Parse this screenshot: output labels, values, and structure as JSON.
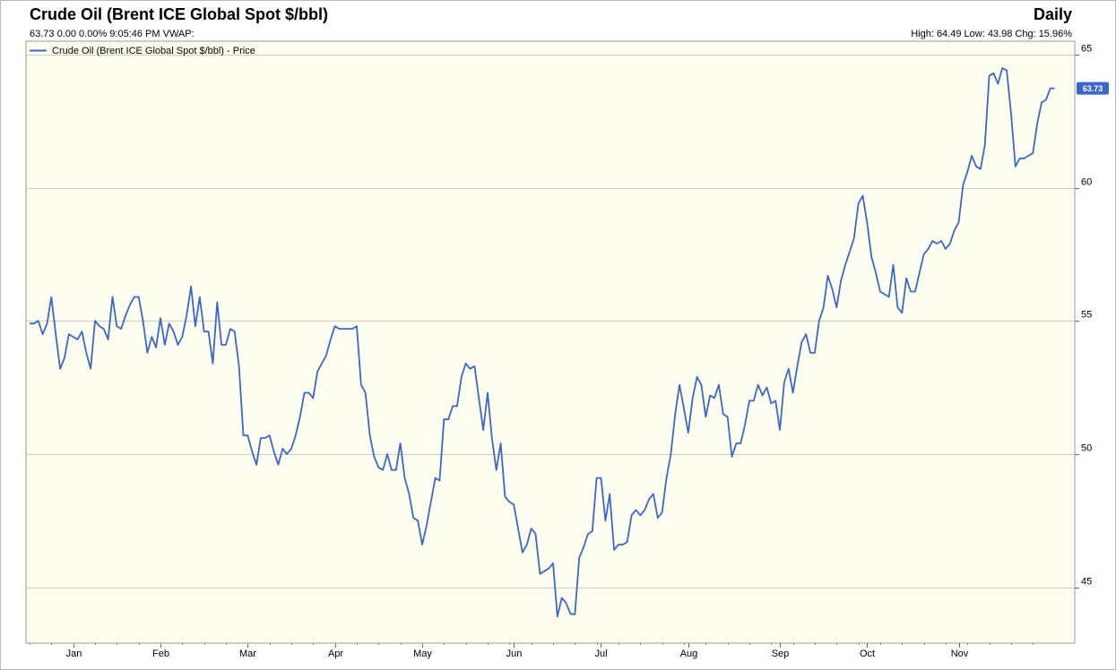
{
  "header": {
    "title": "Crude Oil (Brent ICE Global Spot $/bbl)",
    "frequency": "Daily",
    "quote_line": "63.73 0.00 0.00% 9:05:46 PM VWAP:",
    "stats_line": "High: 64.49 Low: 43.98 Chg: 15.96%"
  },
  "colors": {
    "plot_background": "#fefef0",
    "line": "#3a67c8",
    "grid": "#cfcfc0",
    "last_value_box": "#3a67c8"
  },
  "chart_data": {
    "type": "line",
    "title": "Crude Oil (Brent ICE Global Spot $/bbl)",
    "xlabel": "",
    "ylabel": "",
    "ylim": [
      42.9,
      65.5
    ],
    "y_ticks": [
      45,
      50,
      55,
      60,
      65
    ],
    "y_axis_side": "right",
    "grid": "horizontal",
    "legend_position": "top-left",
    "x_ticks": [
      {
        "label": "Jan",
        "index": 10
      },
      {
        "label": "Feb",
        "index": 30
      },
      {
        "label": "Mar",
        "index": 50
      },
      {
        "label": "Apr",
        "index": 70
      },
      {
        "label": "May",
        "index": 90
      },
      {
        "label": "Jun",
        "index": 111
      },
      {
        "label": "Jul",
        "index": 131
      },
      {
        "label": "Aug",
        "index": 151
      },
      {
        "label": "Sep",
        "index": 172
      },
      {
        "label": "Oct",
        "index": 192
      },
      {
        "label": "Nov",
        "index": 213
      }
    ],
    "x_range": [
      0,
      232
    ],
    "last_value": "63.73",
    "series": [
      {
        "name": "Crude Oil (Brent ICE Global Spot $/bbl) - Price",
        "values": [
          54.9,
          54.9,
          55.0,
          54.5,
          54.9,
          55.9,
          54.5,
          53.2,
          53.6,
          54.5,
          54.4,
          54.3,
          54.6,
          53.8,
          53.2,
          55.0,
          54.8,
          54.7,
          54.3,
          55.9,
          54.8,
          54.7,
          55.2,
          55.6,
          55.9,
          55.9,
          55.0,
          53.8,
          54.4,
          54.0,
          55.1,
          54.1,
          54.9,
          54.6,
          54.1,
          54.4,
          55.2,
          56.3,
          54.8,
          55.9,
          54.6,
          54.6,
          53.4,
          55.7,
          54.1,
          54.1,
          54.7,
          54.6,
          53.3,
          50.7,
          50.7,
          50.1,
          49.6,
          50.6,
          50.6,
          50.7,
          50.1,
          49.6,
          50.2,
          50.0,
          50.2,
          50.7,
          51.4,
          52.3,
          52.3,
          52.1,
          53.1,
          53.4,
          53.7,
          54.3,
          54.8,
          54.7,
          54.7,
          54.7,
          54.7,
          54.8,
          52.6,
          52.3,
          50.7,
          49.9,
          49.5,
          49.4,
          50.0,
          49.4,
          49.4,
          50.4,
          49.1,
          48.5,
          47.6,
          47.5,
          46.6,
          47.3,
          48.2,
          49.1,
          49.0,
          51.3,
          51.3,
          51.8,
          51.8,
          52.9,
          53.4,
          53.2,
          53.3,
          52.1,
          50.9,
          52.3,
          50.6,
          49.4,
          50.4,
          48.4,
          48.2,
          48.1,
          47.2,
          46.3,
          46.6,
          47.2,
          47.0,
          45.5,
          45.6,
          45.7,
          45.9,
          43.9,
          44.6,
          44.4,
          44.0,
          43.98,
          46.1,
          46.5,
          47.0,
          47.1,
          49.1,
          49.1,
          47.5,
          48.5,
          46.4,
          46.6,
          46.6,
          46.7,
          47.7,
          47.9,
          47.7,
          47.9,
          48.3,
          48.5,
          47.6,
          47.8,
          49.1,
          50.0,
          51.5,
          52.6,
          51.7,
          50.8,
          52.1,
          52.9,
          52.6,
          51.4,
          52.2,
          52.1,
          52.6,
          51.5,
          51.4,
          49.9,
          50.4,
          50.4,
          51.1,
          52.0,
          52.0,
          52.6,
          52.2,
          52.5,
          51.9,
          52.0,
          50.9,
          52.7,
          53.2,
          52.3,
          53.3,
          54.2,
          54.5,
          53.8,
          53.8,
          55.0,
          55.5,
          56.7,
          56.2,
          55.5,
          56.5,
          57.1,
          57.6,
          58.1,
          59.4,
          59.7,
          58.7,
          57.4,
          56.8,
          56.1,
          56.0,
          55.9,
          57.1,
          55.5,
          55.3,
          56.6,
          56.1,
          56.1,
          56.8,
          57.5,
          57.7,
          58.0,
          57.9,
          58.0,
          57.7,
          57.9,
          58.4,
          58.7,
          60.1,
          60.6,
          61.2,
          60.8,
          60.7,
          61.6,
          64.2,
          64.3,
          63.9,
          64.49,
          64.4,
          62.8,
          60.8,
          61.1,
          61.1,
          61.2,
          61.3,
          62.4,
          63.2,
          63.3,
          63.73,
          63.73
        ]
      }
    ]
  }
}
